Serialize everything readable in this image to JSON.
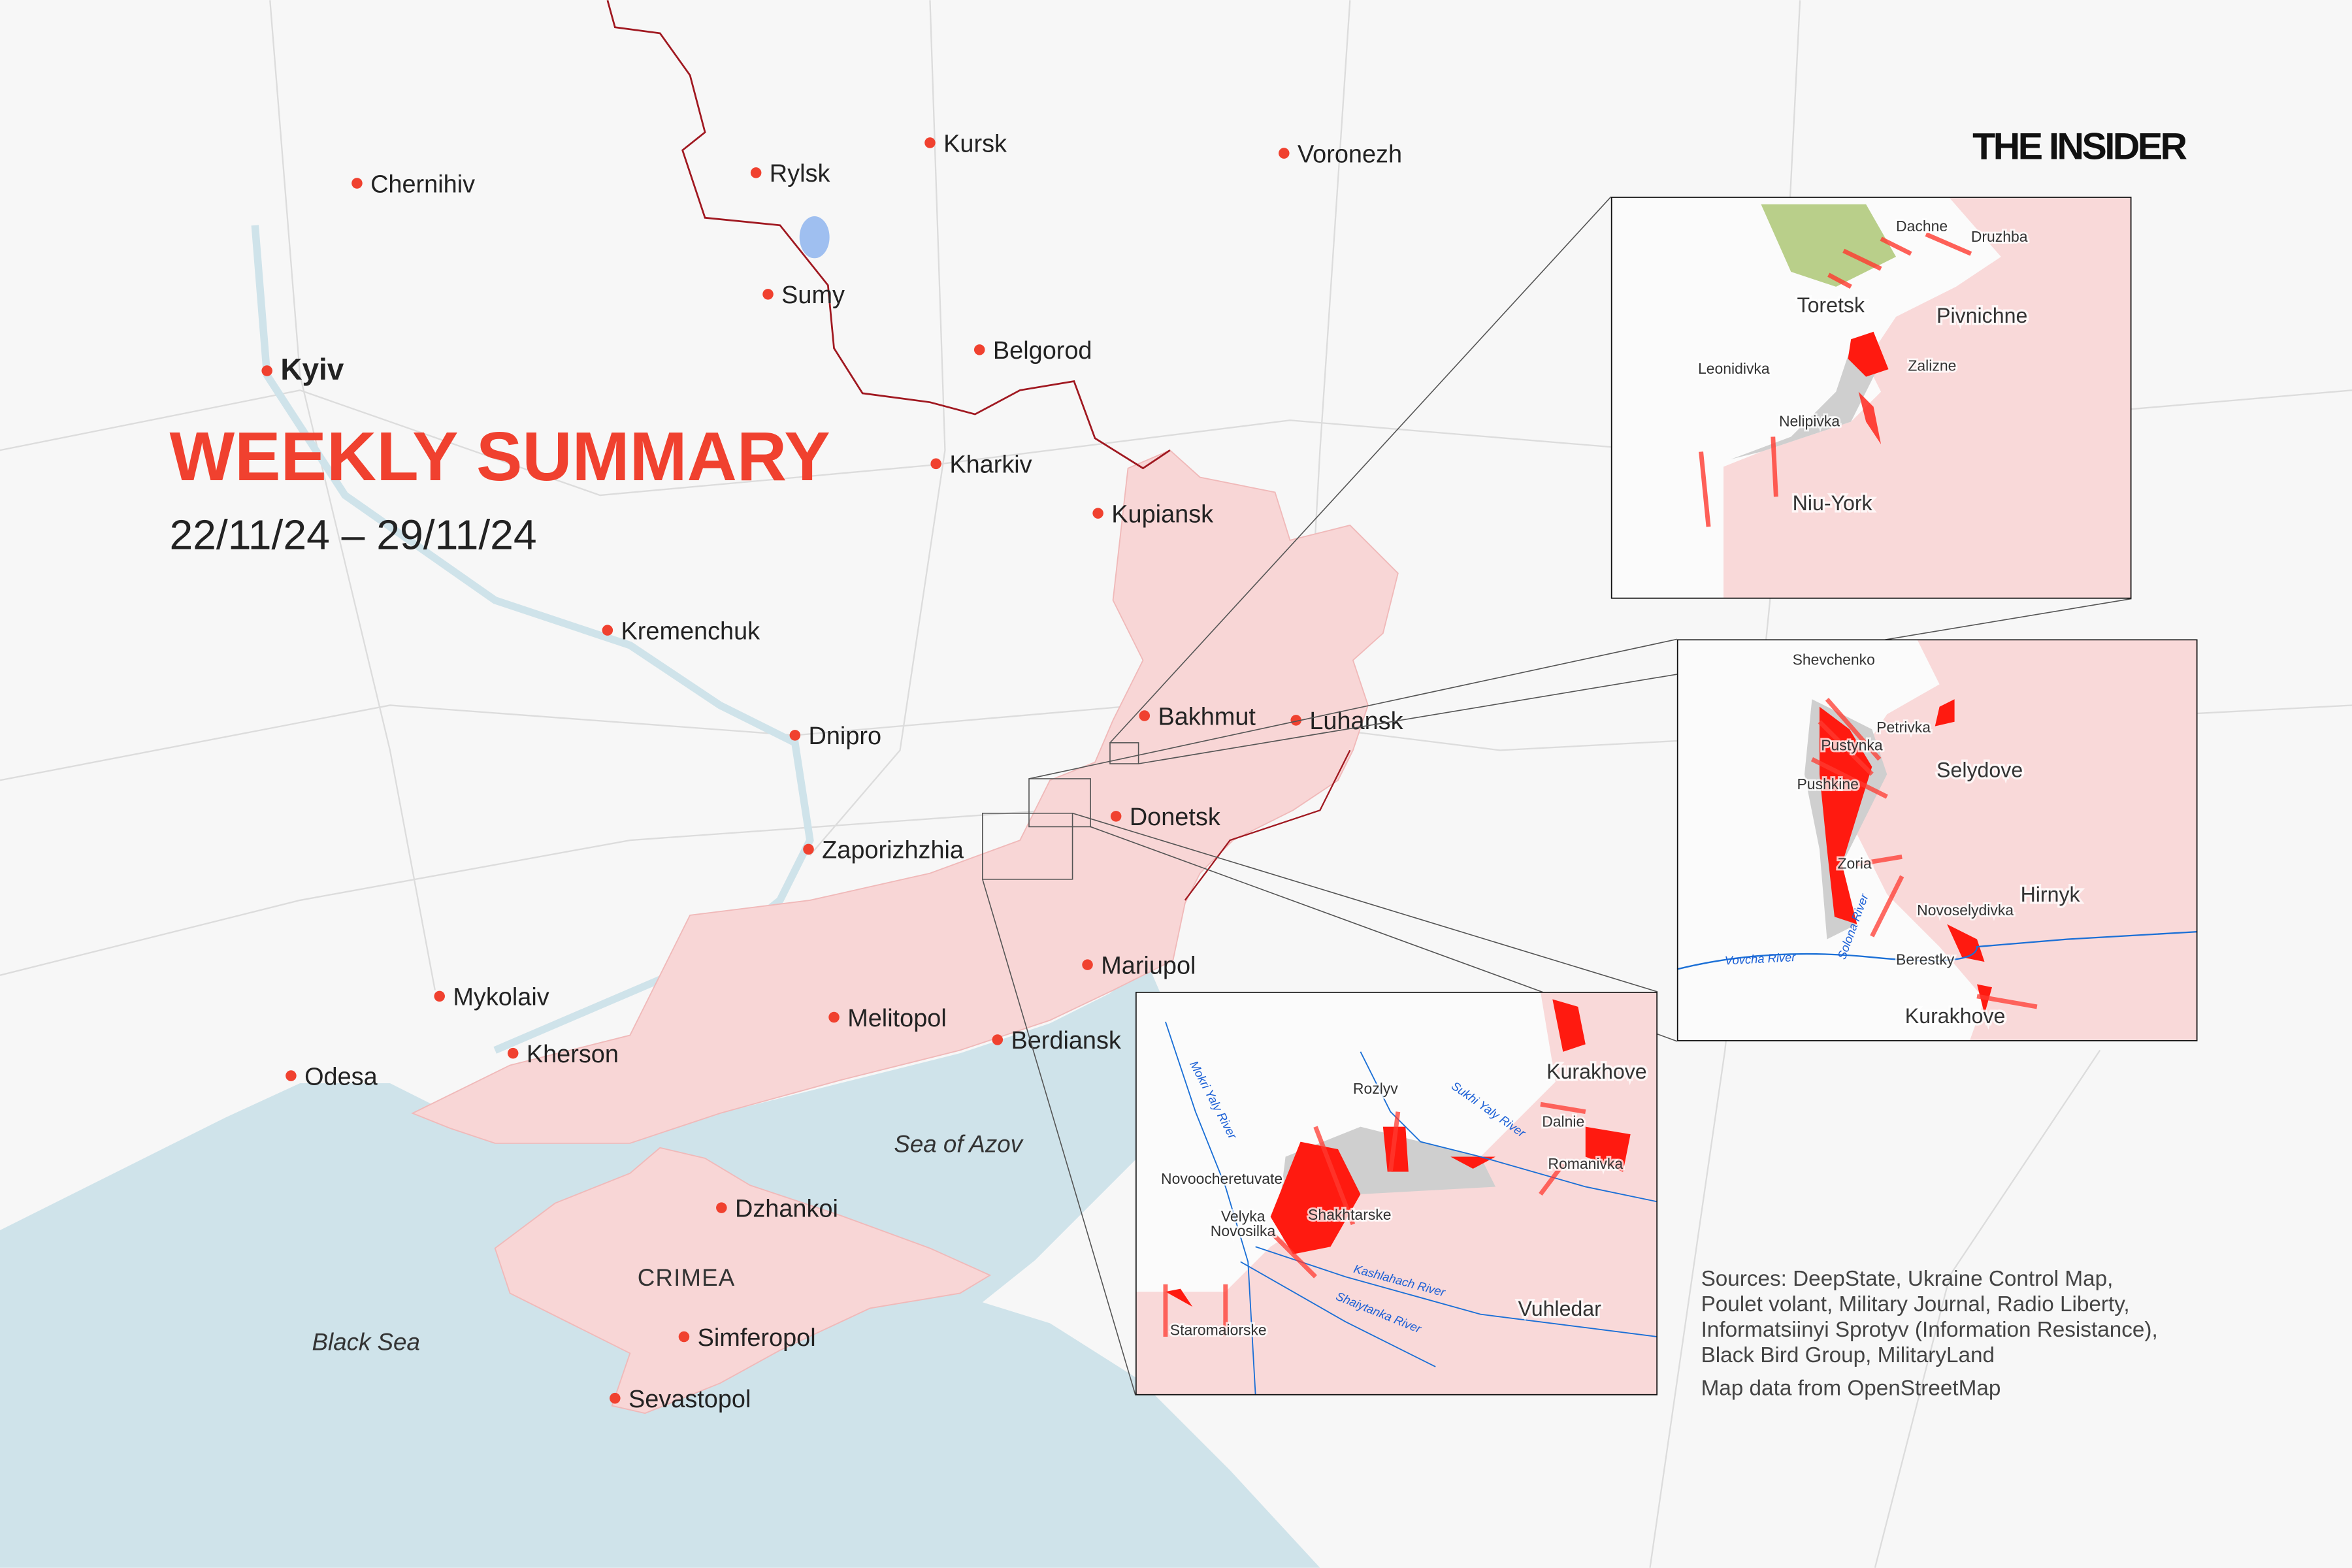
{
  "header": {
    "title": "WEEKLY SUMMARY",
    "date_range": "22/11/24 – 29/11/24",
    "logo": "THE INSIDER"
  },
  "colors": {
    "title_red": "#f0412f",
    "occupied_pink": "#f8d6d6",
    "advance_red": "#ff1a10",
    "sea_blue": "#cfe3ea",
    "border": "#a01820",
    "contested_gray": "#cfcfcf"
  },
  "main_map": {
    "cities": [
      "Chernihiv",
      "Kyiv",
      "Rylsk",
      "Kursk",
      "Voronezh",
      "Sumy",
      "Belgorod",
      "Kharkiv",
      "Kupiansk",
      "Kremenchuk",
      "Dnipro",
      "Bakhmut",
      "Luhansk",
      "Donetsk",
      "Zaporizhzhia",
      "Mariupol",
      "Mykolaiv",
      "Melitopol",
      "Kherson",
      "Berdiansk",
      "Odesa",
      "Dzhankoi",
      "Simferopol",
      "Sevastopol"
    ],
    "region_label": "CRIMEA",
    "seas": [
      "Black Sea",
      "Sea of Azov"
    ]
  },
  "insets": {
    "toretsk": {
      "labels": [
        "Dachne",
        "Druzhba",
        "Toretsk",
        "Pivnichne",
        "Zalizne",
        "Leonidivka",
        "Nelipivka",
        "Niu-York"
      ]
    },
    "selydove": {
      "labels": [
        "Shevchenko",
        "Petrivka",
        "Pustynka",
        "Selydove",
        "Pushkine",
        "Zoria",
        "Hirnyk",
        "Novoselydivka",
        "Berestky",
        "Kurakhove"
      ],
      "rivers": [
        "Vovcha River",
        "Solona River"
      ]
    },
    "kurakhove": {
      "labels": [
        "Kurakhove",
        "Rozlyv",
        "Dalnie",
        "Romanivka",
        "Novoocheretuvate",
        "Velyka",
        "Novosilka",
        "Shakhtarske",
        "Vuhledar",
        "Staromaiorske"
      ],
      "rivers": [
        "Mokri Yaly River",
        "Sukhi Yaly River",
        "Kashlahach River",
        "Shaiytanka River"
      ]
    }
  },
  "sources": {
    "lines": [
      "Sources: DeepState, Ukraine Control Map,",
      "Poulet volant, Military Journal, Radio Liberty,",
      "Informatsiinyi Sprotyv (Information Resistance),",
      "Black Bird Group, MilitaryLand"
    ],
    "map_data": "Map data from OpenStreetMap"
  }
}
